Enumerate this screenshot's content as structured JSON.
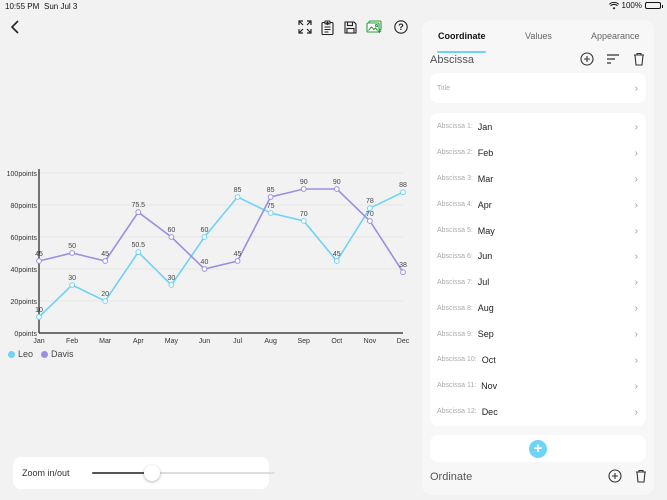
{
  "status": {
    "time": "10:55 PM",
    "date": "Sun Jul 3",
    "battery": "100%",
    "battery_level": 1.0
  },
  "toolbar": {
    "back": "back-icon",
    "icons": [
      "fullscreen-icon",
      "clipboard-export-icon",
      "save-icon",
      "image-export-icon",
      "help-icon"
    ]
  },
  "chart_data": {
    "type": "line",
    "categories": [
      "Jan",
      "Feb",
      "Mar",
      "Apr",
      "May",
      "Jun",
      "Jul",
      "Aug",
      "Sep",
      "Oct",
      "Nov",
      "Dec"
    ],
    "series": [
      {
        "name": "Leo",
        "color": "#6fd3f5",
        "values": [
          10,
          30,
          20,
          50.5,
          30,
          60,
          85,
          75,
          70,
          45,
          78,
          88
        ]
      },
      {
        "name": "Davis",
        "color": "#9b8fe0",
        "values": [
          45,
          50,
          45,
          75.5,
          60,
          40,
          45,
          85,
          90,
          90,
          70,
          38
        ]
      }
    ],
    "ylim": [
      0,
      100
    ],
    "yticks": [
      "0points",
      "20points",
      "40points",
      "60points",
      "80points",
      "100points"
    ],
    "grid": true,
    "legend_position": "bottom-left"
  },
  "zoom": {
    "label": "Zoom in/out",
    "level": 0.33
  },
  "panel": {
    "tabs": [
      {
        "label": "Coordinate",
        "active": true
      },
      {
        "label": "Values",
        "active": false
      },
      {
        "label": "Appearance",
        "active": false
      }
    ],
    "abscissa": {
      "section_title": "Abscissa",
      "title_placeholder": "Title",
      "rows": [
        {
          "key": "Abscissa 1:",
          "value": "Jan"
        },
        {
          "key": "Abscissa 2:",
          "value": "Feb"
        },
        {
          "key": "Abscissa 3:",
          "value": "Mar"
        },
        {
          "key": "Abscissa 4:",
          "value": "Apr"
        },
        {
          "key": "Abscissa 5:",
          "value": "May"
        },
        {
          "key": "Abscissa 6:",
          "value": "Jun"
        },
        {
          "key": "Abscissa 7:",
          "value": "Jul"
        },
        {
          "key": "Abscissa 8:",
          "value": "Aug"
        },
        {
          "key": "Abscissa 9:",
          "value": "Sep"
        },
        {
          "key": "Abscissa 10:",
          "value": "Oct"
        },
        {
          "key": "Abscissa 11:",
          "value": "Nov"
        },
        {
          "key": "Abscissa 12:",
          "value": "Dec"
        }
      ],
      "add_symbol": "+"
    },
    "ordinate": {
      "section_title": "Ordinate"
    }
  }
}
